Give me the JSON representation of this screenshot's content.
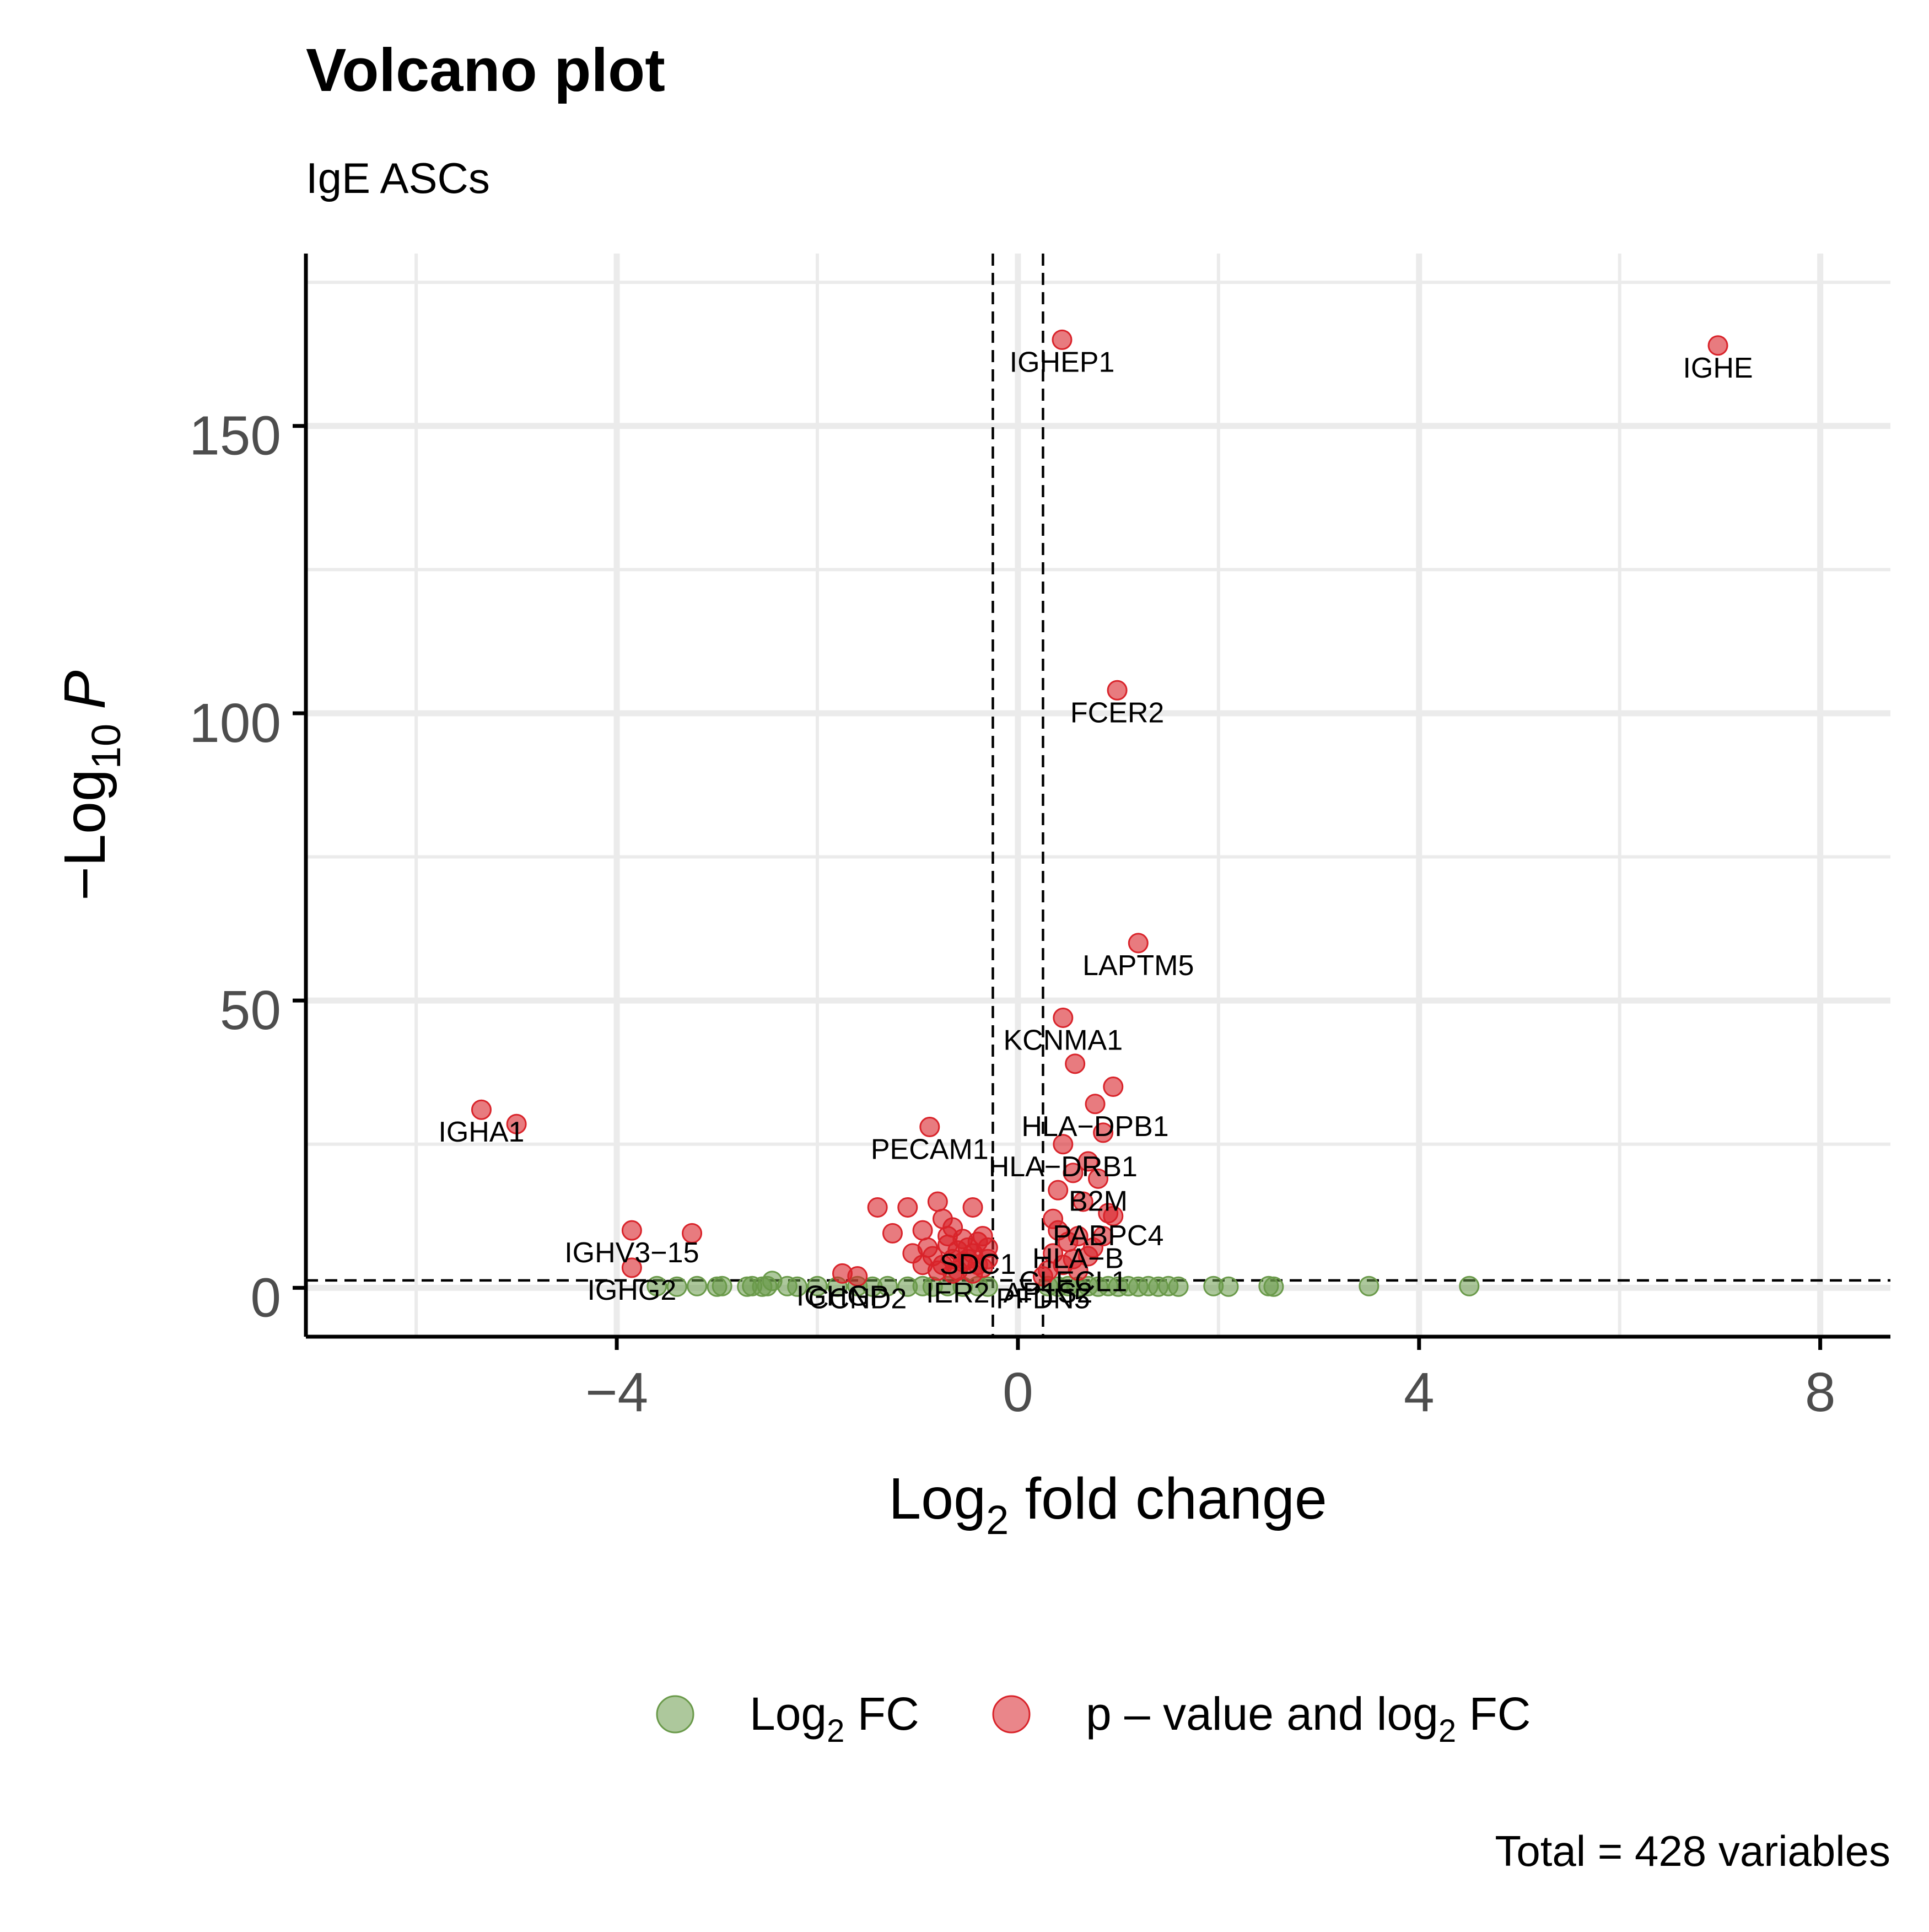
{
  "chart_data": {
    "type": "scatter",
    "title": "Volcano plot",
    "subtitle": "IgE ASCs",
    "xlabel": {
      "prefix": "Log",
      "sub": "2",
      "suffix": " fold change"
    },
    "ylabel": {
      "prefix": "−Log",
      "sub": "10",
      "suffix": "P"
    },
    "caption": "Total = 428 variables",
    "xlim": [
      -7.1,
      8.7
    ],
    "ylim": [
      -8.5,
      180
    ],
    "x_ticks": [
      -4,
      0,
      4,
      8
    ],
    "x_tick_labels": [
      "−4",
      "0",
      "4",
      "8"
    ],
    "y_ticks": [
      0,
      50,
      100,
      150
    ],
    "y_tick_labels": [
      "0",
      "50",
      "100",
      "150"
    ],
    "cutoffs": {
      "log2fc": [
        -0.25,
        0.25
      ],
      "neg_log10_p": 1.3
    },
    "grid": true,
    "legend_position": "bottom",
    "legend": [
      {
        "prefix": "Log",
        "sub": "2",
        "suffix": " FC",
        "color": "#6a9a4a"
      },
      {
        "prefix": "p – value and log",
        "sub": "2",
        "suffix": " FC",
        "color": "#d9232a"
      }
    ],
    "colors": {
      "log2fc_only": "#6a9a4a",
      "significant": "#d9232a"
    },
    "series": [
      {
        "name": "p – value and log2 FC",
        "points": [
          {
            "x": 6.98,
            "y": 164.0,
            "label": "IGHE"
          },
          {
            "x": 0.44,
            "y": 165.0,
            "label": "IGHEP1"
          },
          {
            "x": 0.99,
            "y": 104.0,
            "label": "FCER2"
          },
          {
            "x": 1.2,
            "y": 60.0,
            "label": "LAPTM5"
          },
          {
            "x": 0.45,
            "y": 47.0,
            "label": "KCNMA1"
          },
          {
            "x": 0.77,
            "y": 32.0,
            "label": "HLA−DPB1"
          },
          {
            "x": 0.45,
            "y": 25.0,
            "label": "HLA−DRB1"
          },
          {
            "x": 0.8,
            "y": 19.0,
            "label": "B2M"
          },
          {
            "x": 0.9,
            "y": 13.0,
            "label": "PABPC4"
          },
          {
            "x": 0.6,
            "y": 9.0,
            "label": "HLA−B"
          },
          {
            "x": 0.55,
            "y": 5.0,
            "label": "CLECL1"
          },
          {
            "x": 0.3,
            "y": 3.0,
            "label": "AP1S2"
          },
          {
            "x": 0.25,
            "y": 2.0,
            "label": "PFDN5"
          },
          {
            "x": -0.4,
            "y": 8.0,
            "label": "SDC1"
          },
          {
            "x": -0.6,
            "y": 3.0,
            "label": "IER2"
          },
          {
            "x": -1.6,
            "y": 2.0,
            "label": "CCND2"
          },
          {
            "x": -0.88,
            "y": 28.0,
            "label": "PECAM1"
          },
          {
            "x": -5.35,
            "y": 31.0,
            "label": "IGHA1"
          },
          {
            "x": -3.85,
            "y": 10.0,
            "label": "IGHV3−15"
          },
          {
            "x": -3.85,
            "y": 3.5,
            "label": "IGHG2"
          },
          {
            "x": -1.75,
            "y": 2.5,
            "label": "IGHGP"
          },
          {
            "x": -5.0,
            "y": 28.5
          },
          {
            "x": -3.25,
            "y": 9.5
          },
          {
            "x": 0.57,
            "y": 39.0
          },
          {
            "x": 0.95,
            "y": 35.0
          },
          {
            "x": 0.85,
            "y": 27.0
          },
          {
            "x": 0.55,
            "y": 20.0
          },
          {
            "x": 0.4,
            "y": 17.0
          },
          {
            "x": 0.7,
            "y": 22.0
          },
          {
            "x": 0.35,
            "y": 12.0
          },
          {
            "x": 0.65,
            "y": 15.0
          },
          {
            "x": 0.95,
            "y": 12.5
          },
          {
            "x": 0.85,
            "y": 9.0
          },
          {
            "x": 0.4,
            "y": 10.0
          },
          {
            "x": 0.75,
            "y": 7.0
          },
          {
            "x": 0.5,
            "y": 8.0
          },
          {
            "x": 0.35,
            "y": 6.0
          },
          {
            "x": 0.7,
            "y": 5.5
          },
          {
            "x": 0.45,
            "y": 4.0
          },
          {
            "x": 0.6,
            "y": 3.0
          },
          {
            "x": -1.4,
            "y": 14.0
          },
          {
            "x": -1.1,
            "y": 14.0
          },
          {
            "x": -0.8,
            "y": 15.0
          },
          {
            "x": -0.45,
            "y": 14.0
          },
          {
            "x": -0.75,
            "y": 12.0
          },
          {
            "x": -1.25,
            "y": 9.5
          },
          {
            "x": -0.95,
            "y": 10.0
          },
          {
            "x": -0.65,
            "y": 10.5
          },
          {
            "x": -0.35,
            "y": 9.0
          },
          {
            "x": -0.9,
            "y": 7.0
          },
          {
            "x": -0.7,
            "y": 7.5
          },
          {
            "x": -0.55,
            "y": 8.5
          },
          {
            "x": -0.85,
            "y": 5.5
          },
          {
            "x": -0.65,
            "y": 5.0
          },
          {
            "x": -0.45,
            "y": 6.0
          },
          {
            "x": -0.3,
            "y": 5.0
          },
          {
            "x": -0.75,
            "y": 4.0
          },
          {
            "x": -0.55,
            "y": 4.5
          },
          {
            "x": -0.35,
            "y": 3.5
          },
          {
            "x": -0.6,
            "y": 6.5
          },
          {
            "x": -0.5,
            "y": 7.0
          },
          {
            "x": -0.4,
            "y": 4.0
          },
          {
            "x": -0.8,
            "y": 3.0
          },
          {
            "x": -0.7,
            "y": 9.0
          },
          {
            "x": -0.5,
            "y": 5.0
          },
          {
            "x": -0.3,
            "y": 7.0
          },
          {
            "x": -1.05,
            "y": 6.0
          },
          {
            "x": -0.95,
            "y": 4.0
          },
          {
            "x": -0.45,
            "y": 2.5
          },
          {
            "x": -0.65,
            "y": 2.5
          }
        ]
      },
      {
        "name": "Log2 FC",
        "points": [
          {
            "x": -3.6,
            "y": 0.3
          },
          {
            "x": -3.4,
            "y": 0.2
          },
          {
            "x": -3.2,
            "y": 0.3
          },
          {
            "x": -3.0,
            "y": 0.2
          },
          {
            "x": -2.95,
            "y": 0.3
          },
          {
            "x": -2.7,
            "y": 0.2
          },
          {
            "x": -2.65,
            "y": 0.3
          },
          {
            "x": -2.55,
            "y": 0.2
          },
          {
            "x": -2.5,
            "y": 0.3
          },
          {
            "x": -2.45,
            "y": 1.2
          },
          {
            "x": -2.3,
            "y": 0.3
          },
          {
            "x": -2.2,
            "y": 0.2
          },
          {
            "x": -2.0,
            "y": 0.3
          },
          {
            "x": -1.8,
            "y": 0.2
          },
          {
            "x": -1.6,
            "y": 0.3
          },
          {
            "x": -1.45,
            "y": 0.2
          },
          {
            "x": -1.3,
            "y": 0.3
          },
          {
            "x": -1.1,
            "y": 0.2
          },
          {
            "x": -0.95,
            "y": 0.3
          },
          {
            "x": -0.85,
            "y": 0.2
          },
          {
            "x": -0.7,
            "y": 0.3
          },
          {
            "x": -0.55,
            "y": 0.2
          },
          {
            "x": -0.4,
            "y": 0.3
          },
          {
            "x": -0.3,
            "y": 0.2
          },
          {
            "x": 0.3,
            "y": 0.3
          },
          {
            "x": 0.4,
            "y": 0.2
          },
          {
            "x": 0.5,
            "y": 0.3
          },
          {
            "x": 0.6,
            "y": 0.2
          },
          {
            "x": 0.7,
            "y": 0.3
          },
          {
            "x": 0.8,
            "y": 0.2
          },
          {
            "x": 0.9,
            "y": 0.3
          },
          {
            "x": 1.0,
            "y": 0.2
          },
          {
            "x": 1.1,
            "y": 0.3
          },
          {
            "x": 1.2,
            "y": 0.2
          },
          {
            "x": 1.3,
            "y": 0.3
          },
          {
            "x": 1.4,
            "y": 0.2
          },
          {
            "x": 1.5,
            "y": 0.3
          },
          {
            "x": 1.6,
            "y": 0.2
          },
          {
            "x": 1.95,
            "y": 0.3
          },
          {
            "x": 2.1,
            "y": 0.2
          },
          {
            "x": 2.5,
            "y": 0.3
          },
          {
            "x": 2.55,
            "y": 0.2
          },
          {
            "x": 3.5,
            "y": 0.3
          },
          {
            "x": 4.5,
            "y": 0.3
          }
        ]
      }
    ]
  }
}
